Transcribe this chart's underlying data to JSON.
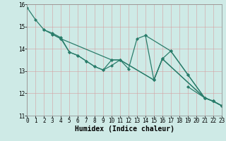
{
  "series": [
    {
      "x": [
        0,
        1,
        2,
        3,
        4,
        5,
        6,
        7,
        8,
        9,
        10,
        11,
        15,
        16,
        21,
        22,
        23
      ],
      "y": [
        15.85,
        15.3,
        14.85,
        14.7,
        14.5,
        13.85,
        13.7,
        13.45,
        13.2,
        13.05,
        13.25,
        13.5,
        12.6,
        13.55,
        11.8,
        11.65,
        11.45
      ]
    },
    {
      "x": [
        2,
        3,
        4,
        5,
        6,
        7,
        8,
        9,
        10,
        11,
        15,
        16,
        21,
        22,
        23
      ],
      "y": [
        14.85,
        14.65,
        14.45,
        13.85,
        13.7,
        13.45,
        13.2,
        13.05,
        13.5,
        13.5,
        12.6,
        13.55,
        11.8,
        11.65,
        11.45
      ]
    },
    {
      "x": [
        3,
        4,
        10,
        11,
        12,
        13,
        14,
        15,
        16,
        17,
        19,
        21,
        22,
        23
      ],
      "y": [
        14.65,
        14.45,
        13.5,
        13.5,
        13.1,
        14.45,
        14.6,
        12.6,
        13.55,
        13.9,
        12.85,
        11.8,
        11.65,
        11.45
      ]
    },
    {
      "x": [
        14,
        17,
        19,
        21,
        22,
        23
      ],
      "y": [
        14.6,
        13.9,
        12.85,
        11.8,
        11.65,
        11.45
      ]
    },
    {
      "x": [
        19,
        21,
        22,
        23
      ],
      "y": [
        12.3,
        11.8,
        11.65,
        11.45
      ]
    }
  ],
  "line_color": "#2a7d6b",
  "marker": "D",
  "marker_size": 2.0,
  "line_width": 0.9,
  "xlabel": "Humidex (Indice chaleur)",
  "xlabel_fontsize": 7,
  "tick_fontsize": 5.5,
  "xlim": [
    0,
    23
  ],
  "ylim": [
    11,
    16
  ],
  "yticks": [
    11,
    12,
    13,
    14,
    15,
    16
  ],
  "xticks": [
    0,
    1,
    2,
    3,
    4,
    5,
    6,
    7,
    8,
    9,
    10,
    11,
    12,
    13,
    14,
    15,
    16,
    17,
    18,
    19,
    20,
    21,
    22,
    23
  ],
  "bg_color": "#ceeae6",
  "grid_color": "#d4a0a0",
  "grid_lw": 0.4,
  "fig_bg": "#ceeae6"
}
